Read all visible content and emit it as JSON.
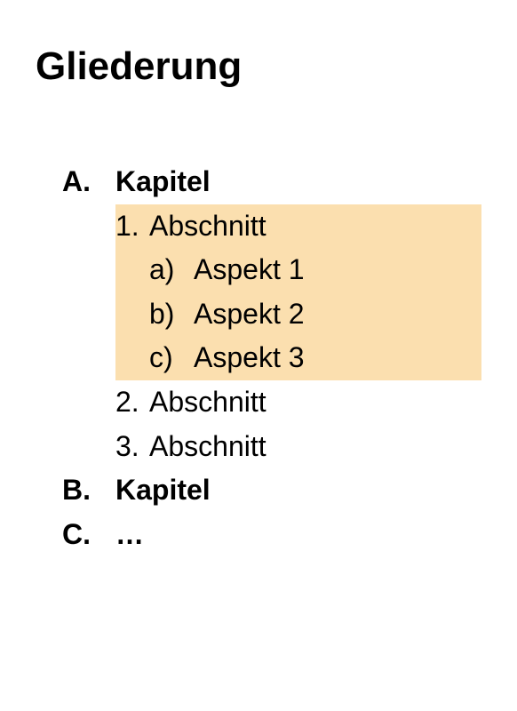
{
  "title": "Gliederung",
  "colors": {
    "text": "#000000",
    "background": "#ffffff",
    "highlight": "#fbdfaf"
  },
  "typography": {
    "title_fontsize": 44,
    "body_fontsize": 32,
    "title_weight": 700,
    "level1_weight": 700,
    "level2_weight": 400,
    "level3_weight": 400,
    "line_height": 1.55
  },
  "outline": [
    {
      "marker": "A.",
      "label": "Kapitel",
      "highlighted": false,
      "children": [
        {
          "marker": "1.",
          "label": "Abschnitt",
          "highlighted": true,
          "children": [
            {
              "marker": "a)",
              "label": "Aspekt 1",
              "highlighted": true
            },
            {
              "marker": "b)",
              "label": "Aspekt 2",
              "highlighted": true
            },
            {
              "marker": "c)",
              "label": "Aspekt 3",
              "highlighted": true
            }
          ]
        },
        {
          "marker": "2.",
          "label": "Abschnitt",
          "highlighted": false
        },
        {
          "marker": "3.",
          "label": "Abschnitt",
          "highlighted": false
        }
      ]
    },
    {
      "marker": "B.",
      "label": "Kapitel",
      "highlighted": false
    },
    {
      "marker": "C.",
      "label": "…",
      "highlighted": false
    }
  ]
}
